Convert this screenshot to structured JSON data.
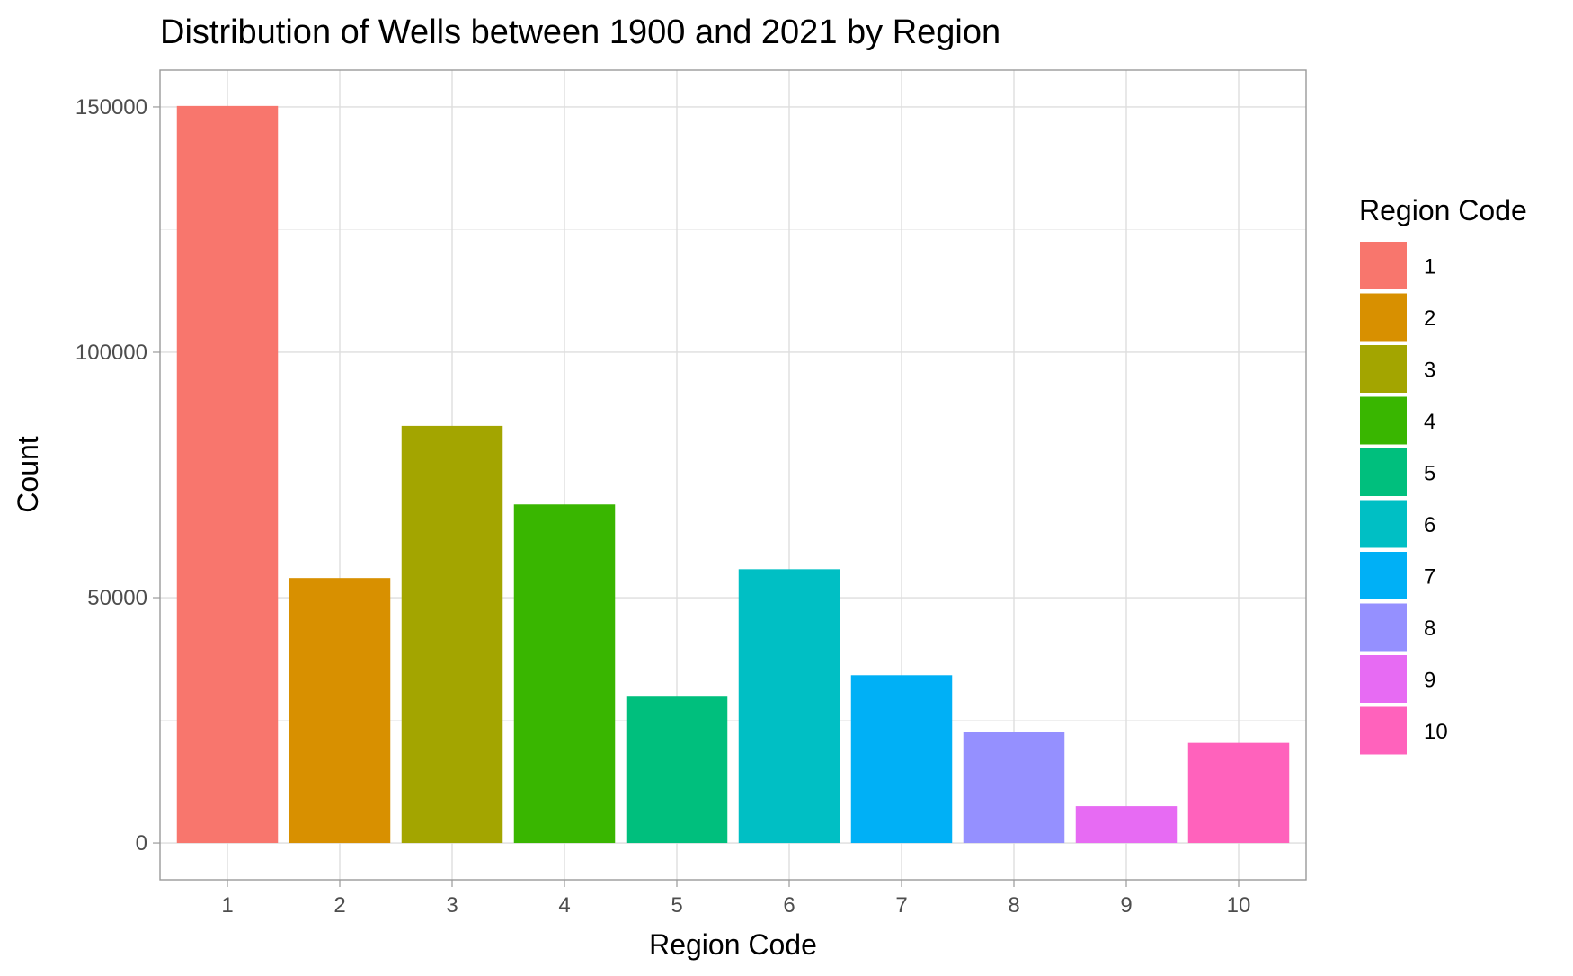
{
  "chart_data": {
    "type": "bar",
    "title": "Distribution of Wells between 1900 and 2021 by Region",
    "xlabel": "Region Code",
    "ylabel": "Count",
    "categories": [
      "1",
      "2",
      "3",
      "4",
      "5",
      "6",
      "7",
      "8",
      "9",
      "10"
    ],
    "values": [
      150200,
      54000,
      85000,
      69000,
      30000,
      55800,
      34200,
      22600,
      7500,
      20400
    ],
    "colors": [
      "#F8766D",
      "#D89000",
      "#A3A500",
      "#39B600",
      "#00BF7D",
      "#00BFC4",
      "#00B0F6",
      "#9590FF",
      "#E76BF3",
      "#FF62BC"
    ],
    "ylim": [
      -7500,
      157500
    ],
    "yticks": [
      0,
      50000,
      100000,
      150000
    ],
    "ytick_labels": [
      "0",
      "50000",
      "100000",
      "150000"
    ],
    "grid": true,
    "legend": {
      "title": "Region Code",
      "position": "right",
      "labels": [
        "1",
        "2",
        "3",
        "4",
        "5",
        "6",
        "7",
        "8",
        "9",
        "10"
      ]
    }
  }
}
